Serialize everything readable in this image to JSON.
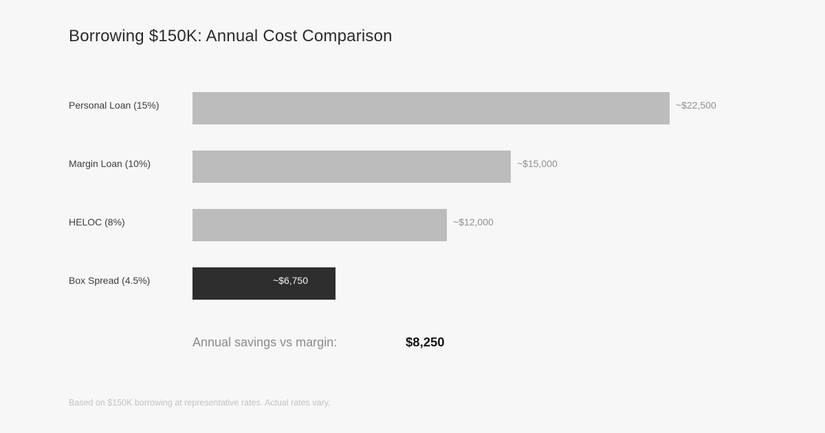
{
  "title": "Borrowing $150K: Annual Cost Comparison",
  "chart_data": {
    "type": "bar",
    "orientation": "horizontal",
    "title": "Borrowing $150K: Annual Cost Comparison",
    "categories": [
      "Personal Loan (15%)",
      "Margin Loan (10%)",
      "HELOC (8%)",
      "Box Spread (4.5%)"
    ],
    "values": [
      22500,
      15000,
      12000,
      6750
    ],
    "value_labels": [
      "~$22,500",
      "~$15,000",
      "~$12,000",
      "~$6,750"
    ],
    "xlim": [
      0,
      22500
    ],
    "grid": false,
    "legend": false,
    "highlight_index": 3,
    "colors": {
      "bar": "#bcbcbc",
      "highlight_bar": "#2e2e2e",
      "value_label": "#8f8f8f",
      "highlight_value_label": "#f5f5f5"
    }
  },
  "summary": {
    "label": "Annual savings vs margin:",
    "value": "$8,250"
  },
  "footnote": "Based on $150K borrowing at representative rates. Actual rates vary.",
  "colors": {
    "background": "#f7f7f7",
    "title_text": "#2b2b2b",
    "category_text": "#3c3c3c",
    "footnote_text": "#c3c3c3",
    "summary_label_text": "#8a8a8a",
    "summary_value_text": "#141414"
  }
}
